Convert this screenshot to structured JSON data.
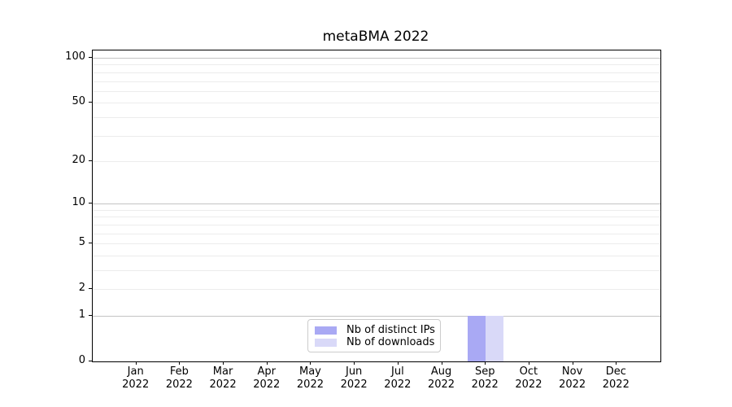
{
  "chart_data": {
    "type": "bar",
    "title": "metaBMA 2022",
    "categories": [
      "Jan",
      "Feb",
      "Mar",
      "Apr",
      "May",
      "Jun",
      "Jul",
      "Aug",
      "Sep",
      "Oct",
      "Nov",
      "Dec"
    ],
    "category_year": "2022",
    "series": [
      {
        "name": "Nb of distinct IPs",
        "color": "#a9a9f4",
        "values": [
          0,
          0,
          0,
          0,
          0,
          0,
          0,
          0,
          1,
          0,
          0,
          0
        ]
      },
      {
        "name": "Nb of downloads",
        "color": "#d9d9f8",
        "values": [
          0,
          0,
          0,
          0,
          0,
          0,
          0,
          0,
          1,
          0,
          0,
          0
        ]
      }
    ],
    "xlabel": "",
    "ylabel": "",
    "yscale": "log1p",
    "ylim": [
      0,
      112
    ],
    "ytick_values": [
      0,
      1,
      2,
      5,
      10,
      20,
      50,
      100
    ],
    "grid_major_values": [
      1,
      10,
      100
    ],
    "grid_minor_values": [
      2,
      3,
      4,
      5,
      6,
      7,
      8,
      9,
      20,
      30,
      40,
      50,
      60,
      70,
      80,
      90
    ],
    "grid": "horizontal",
    "legend_position": "bottom-center",
    "colors": {
      "grid_major": "#c4c4c4",
      "grid_minor": "#ececec",
      "spine": "#000000",
      "legend_border": "#cccccc"
    }
  }
}
